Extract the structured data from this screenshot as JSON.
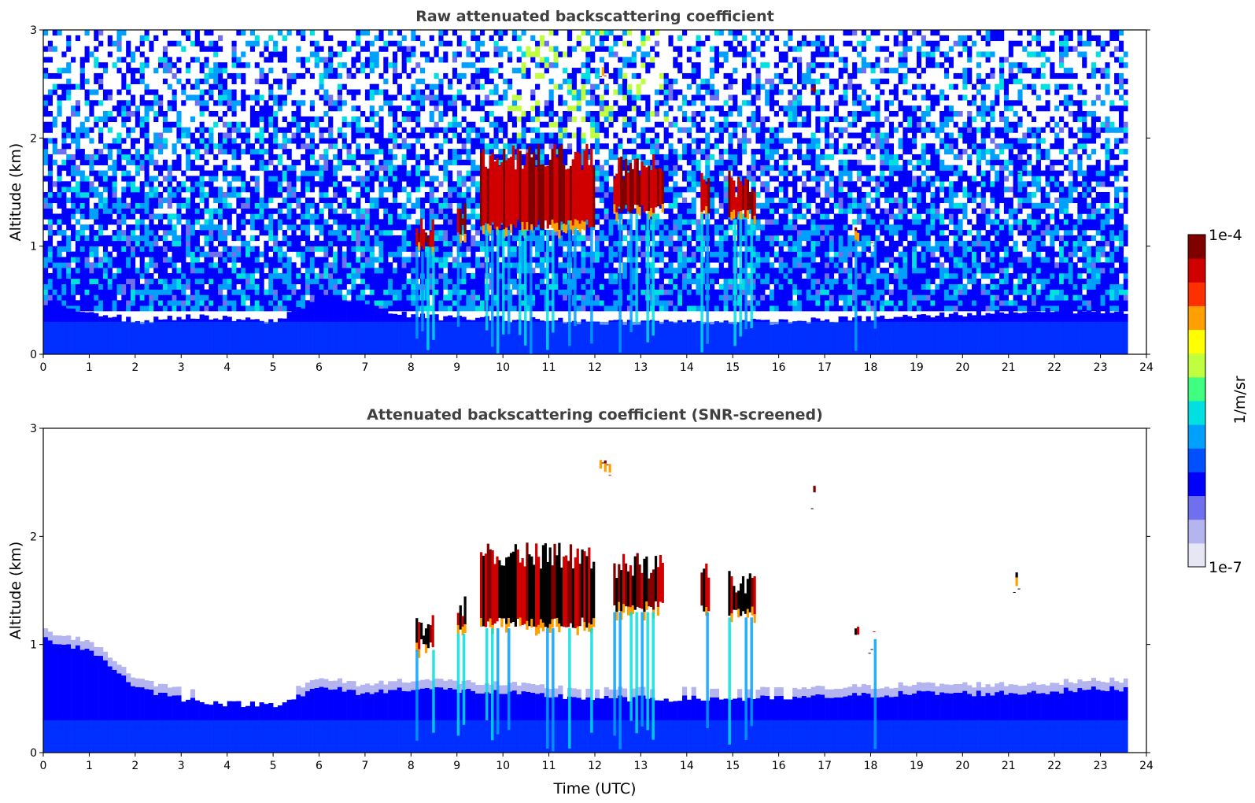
{
  "chart_data": [
    {
      "type": "heatmap",
      "title": "Raw attenuated backscattering coefficient",
      "xlabel": "",
      "ylabel": "Altitude (km)",
      "xlim": [
        0,
        24
      ],
      "ylim": [
        0,
        3
      ],
      "x_ticks": [
        "0",
        "1",
        "2",
        "3",
        "4",
        "5",
        "6",
        "7",
        "8",
        "9",
        "10",
        "11",
        "12",
        "13",
        "14",
        "15",
        "16",
        "17",
        "18",
        "19",
        "20",
        "21",
        "22",
        "23",
        "24"
      ],
      "y_ticks": [
        "0",
        "1",
        "2",
        "3"
      ],
      "data_end_time": 23.6,
      "boundary_layer_top_km": [
        [
          0,
          0.45
        ],
        [
          1,
          0.4
        ],
        [
          2,
          0.3
        ],
        [
          3,
          0.35
        ],
        [
          5,
          0.3
        ],
        [
          6,
          0.55
        ],
        [
          7,
          0.45
        ],
        [
          8,
          0.35
        ],
        [
          12,
          0.3
        ],
        [
          16,
          0.3
        ],
        [
          19,
          0.35
        ],
        [
          21,
          0.4
        ],
        [
          23.6,
          0.4
        ]
      ],
      "clouds": [
        {
          "t0": 8.1,
          "t1": 8.5,
          "base_km": 0.95,
          "top_km": 1.3
        },
        {
          "t0": 9.0,
          "t1": 9.2,
          "base_km": 1.1,
          "top_km": 1.45
        },
        {
          "t0": 9.5,
          "t1": 12.0,
          "base_km": 1.15,
          "top_km": 1.95
        },
        {
          "t0": 12.4,
          "t1": 13.5,
          "base_km": 1.3,
          "top_km": 1.85
        },
        {
          "t0": 14.3,
          "t1": 14.5,
          "base_km": 1.3,
          "top_km": 1.8
        },
        {
          "t0": 14.9,
          "t1": 15.5,
          "base_km": 1.25,
          "top_km": 1.7
        },
        {
          "t0": 12.1,
          "t1": 12.35,
          "base_km": 2.65,
          "top_km": 2.75
        },
        {
          "t0": 16.7,
          "t1": 16.8,
          "base_km": 2.4,
          "top_km": 2.5
        },
        {
          "t0": 21.1,
          "t1": 21.25,
          "base_km": 1.6,
          "top_km": 1.7
        },
        {
          "t0": 17.65,
          "t1": 17.75,
          "base_km": 1.05,
          "top_km": 1.2
        },
        {
          "t0": 17.95,
          "t1": 18.1,
          "base_km": 1.05,
          "top_km": 1.15
        }
      ]
    },
    {
      "type": "heatmap",
      "title": "Attenuated backscattering coefficient (SNR-screened)",
      "xlabel": "Time (UTC)",
      "ylabel": "Altitude (km)",
      "xlim": [
        0,
        24
      ],
      "ylim": [
        0,
        3
      ],
      "x_ticks": [
        "0",
        "1",
        "2",
        "3",
        "4",
        "5",
        "6",
        "7",
        "8",
        "9",
        "10",
        "11",
        "12",
        "13",
        "14",
        "15",
        "16",
        "17",
        "18",
        "19",
        "20",
        "21",
        "22",
        "23",
        "24"
      ],
      "y_ticks": [
        "0",
        "1",
        "2",
        "3"
      ],
      "data_end_time": 23.6,
      "boundary_layer_top_km": [
        [
          0,
          1.05
        ],
        [
          1,
          0.95
        ],
        [
          2,
          0.6
        ],
        [
          3,
          0.5
        ],
        [
          4,
          0.45
        ],
        [
          5,
          0.45
        ],
        [
          6,
          0.6
        ],
        [
          7,
          0.55
        ],
        [
          8,
          0.6
        ],
        [
          12,
          0.5
        ],
        [
          16,
          0.5
        ],
        [
          19,
          0.55
        ],
        [
          21,
          0.55
        ],
        [
          23.6,
          0.6
        ]
      ]
    }
  ],
  "colorbar": {
    "label": "1/m/sr",
    "min_label": "1e-7",
    "max_label": "1e-4",
    "scale": "log",
    "colors": [
      "#e6e6f5",
      "#b4b4ee",
      "#7070ee",
      "#0000ff",
      "#0050ff",
      "#00a0ff",
      "#00e0e0",
      "#40ff80",
      "#c0ff40",
      "#ffff00",
      "#ffa000",
      "#ff3000",
      "#d00000",
      "#800000"
    ]
  }
}
